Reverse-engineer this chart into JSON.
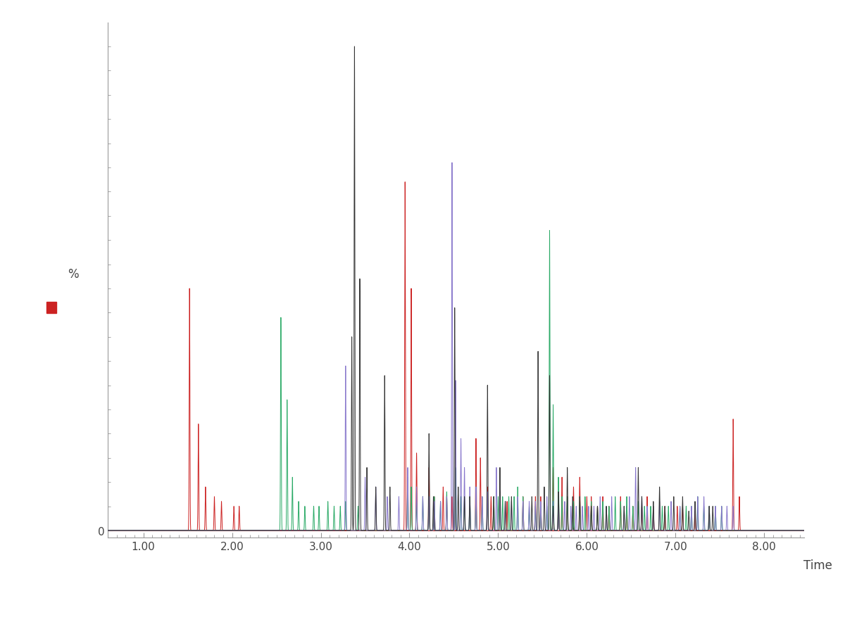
{
  "title": "",
  "xlabel": "Time",
  "ylabel": "%",
  "xlim": [
    0.6,
    8.45
  ],
  "ylim": [
    -0.015,
    1.05
  ],
  "background_color": "#ffffff",
  "axis_color": "#999999",
  "tick_color": "#999999",
  "label_color": "#444444",
  "legend_color": "#cc2222",
  "colors": {
    "black": "#333333",
    "red": "#cc2222",
    "green": "#2aaa66",
    "purple": "#8877cc"
  },
  "sigma": 0.004,
  "peaks_black": [
    [
      3.38,
      1.0
    ],
    [
      3.35,
      0.4
    ],
    [
      3.44,
      0.52
    ],
    [
      3.72,
      0.32
    ],
    [
      4.51,
      0.46
    ],
    [
      4.88,
      0.3
    ],
    [
      5.02,
      0.13
    ],
    [
      5.45,
      0.37
    ],
    [
      5.58,
      0.32
    ],
    [
      5.78,
      0.13
    ],
    [
      6.58,
      0.13
    ],
    [
      6.82,
      0.09
    ],
    [
      6.98,
      0.07
    ],
    [
      7.08,
      0.07
    ],
    [
      7.22,
      0.06
    ],
    [
      7.38,
      0.05
    ],
    [
      3.52,
      0.13
    ],
    [
      3.62,
      0.09
    ],
    [
      3.78,
      0.09
    ],
    [
      4.22,
      0.2
    ],
    [
      4.27,
      0.07
    ],
    [
      4.55,
      0.09
    ],
    [
      4.62,
      0.07
    ],
    [
      4.68,
      0.07
    ],
    [
      4.95,
      0.07
    ],
    [
      5.08,
      0.06
    ],
    [
      5.15,
      0.07
    ],
    [
      5.38,
      0.07
    ],
    [
      5.52,
      0.09
    ],
    [
      5.62,
      0.05
    ],
    [
      5.68,
      0.08
    ],
    [
      5.84,
      0.07
    ],
    [
      5.92,
      0.07
    ],
    [
      6.05,
      0.05
    ],
    [
      6.12,
      0.05
    ],
    [
      6.22,
      0.05
    ],
    [
      6.42,
      0.05
    ],
    [
      6.62,
      0.07
    ],
    [
      6.75,
      0.06
    ],
    [
      6.88,
      0.05
    ],
    [
      7.15,
      0.04
    ],
    [
      7.42,
      0.05
    ]
  ],
  "peaks_red": [
    [
      1.52,
      0.5
    ],
    [
      1.62,
      0.22
    ],
    [
      1.7,
      0.09
    ],
    [
      1.8,
      0.07
    ],
    [
      3.95,
      0.72
    ],
    [
      4.02,
      0.5
    ],
    [
      4.08,
      0.16
    ],
    [
      4.75,
      0.19
    ],
    [
      4.8,
      0.15
    ],
    [
      5.62,
      0.13
    ],
    [
      5.72,
      0.11
    ],
    [
      5.85,
      0.09
    ],
    [
      5.92,
      0.11
    ],
    [
      6.18,
      0.07
    ],
    [
      6.38,
      0.07
    ],
    [
      7.65,
      0.23
    ],
    [
      7.72,
      0.07
    ],
    [
      1.88,
      0.06
    ],
    [
      2.02,
      0.05
    ],
    [
      2.08,
      0.05
    ],
    [
      4.22,
      0.13
    ],
    [
      4.28,
      0.07
    ],
    [
      4.38,
      0.09
    ],
    [
      4.42,
      0.07
    ],
    [
      4.48,
      0.07
    ],
    [
      4.88,
      0.09
    ],
    [
      4.92,
      0.07
    ],
    [
      5.1,
      0.06
    ],
    [
      5.28,
      0.07
    ],
    [
      5.42,
      0.07
    ],
    [
      5.48,
      0.07
    ],
    [
      5.68,
      0.07
    ],
    [
      5.78,
      0.07
    ],
    [
      6.0,
      0.07
    ],
    [
      6.05,
      0.07
    ],
    [
      6.12,
      0.05
    ],
    [
      6.25,
      0.05
    ],
    [
      6.45,
      0.05
    ],
    [
      6.52,
      0.05
    ],
    [
      6.62,
      0.05
    ],
    [
      6.68,
      0.07
    ],
    [
      6.75,
      0.05
    ],
    [
      6.88,
      0.05
    ],
    [
      7.02,
      0.05
    ],
    [
      7.08,
      0.05
    ],
    [
      7.22,
      0.04
    ]
  ],
  "peaks_green": [
    [
      2.55,
      0.44
    ],
    [
      2.62,
      0.27
    ],
    [
      2.68,
      0.11
    ],
    [
      2.75,
      0.06
    ],
    [
      5.58,
      0.62
    ],
    [
      5.62,
      0.26
    ],
    [
      5.68,
      0.11
    ],
    [
      5.22,
      0.09
    ],
    [
      5.28,
      0.07
    ],
    [
      4.52,
      0.13
    ],
    [
      4.58,
      0.07
    ],
    [
      3.98,
      0.11
    ],
    [
      4.02,
      0.09
    ],
    [
      2.82,
      0.05
    ],
    [
      2.92,
      0.05
    ],
    [
      2.98,
      0.05
    ],
    [
      3.08,
      0.06
    ],
    [
      3.15,
      0.05
    ],
    [
      3.22,
      0.05
    ],
    [
      3.28,
      0.06
    ],
    [
      3.42,
      0.05
    ],
    [
      4.08,
      0.06
    ],
    [
      4.15,
      0.07
    ],
    [
      4.22,
      0.07
    ],
    [
      4.28,
      0.07
    ],
    [
      4.35,
      0.06
    ],
    [
      4.42,
      0.08
    ],
    [
      4.62,
      0.07
    ],
    [
      4.68,
      0.07
    ],
    [
      4.75,
      0.09
    ],
    [
      4.82,
      0.07
    ],
    [
      4.88,
      0.07
    ],
    [
      4.95,
      0.07
    ],
    [
      5.0,
      0.07
    ],
    [
      5.05,
      0.07
    ],
    [
      5.12,
      0.07
    ],
    [
      5.18,
      0.07
    ],
    [
      5.35,
      0.05
    ],
    [
      5.42,
      0.05
    ],
    [
      5.48,
      0.05
    ],
    [
      5.55,
      0.05
    ],
    [
      5.72,
      0.07
    ],
    [
      5.78,
      0.07
    ],
    [
      5.85,
      0.06
    ],
    [
      5.92,
      0.07
    ],
    [
      5.98,
      0.07
    ],
    [
      6.05,
      0.06
    ],
    [
      6.12,
      0.05
    ],
    [
      6.18,
      0.06
    ],
    [
      6.25,
      0.05
    ],
    [
      6.32,
      0.07
    ],
    [
      6.38,
      0.06
    ],
    [
      6.45,
      0.07
    ],
    [
      6.52,
      0.05
    ],
    [
      6.58,
      0.06
    ],
    [
      6.65,
      0.05
    ],
    [
      6.72,
      0.05
    ],
    [
      6.85,
      0.05
    ],
    [
      6.92,
      0.05
    ],
    [
      7.05,
      0.05
    ],
    [
      7.12,
      0.05
    ],
    [
      7.18,
      0.05
    ],
    [
      7.25,
      0.07
    ],
    [
      7.32,
      0.05
    ],
    [
      7.38,
      0.05
    ],
    [
      7.45,
      0.05
    ],
    [
      7.52,
      0.05
    ]
  ],
  "peaks_purple": [
    [
      3.28,
      0.34
    ],
    [
      4.48,
      0.76
    ],
    [
      4.52,
      0.31
    ],
    [
      4.58,
      0.19
    ],
    [
      4.62,
      0.13
    ],
    [
      4.68,
      0.09
    ],
    [
      4.88,
      0.08
    ],
    [
      4.98,
      0.13
    ],
    [
      5.02,
      0.08
    ],
    [
      5.22,
      0.07
    ],
    [
      5.62,
      0.06
    ],
    [
      6.15,
      0.07
    ],
    [
      6.28,
      0.07
    ],
    [
      6.55,
      0.13
    ],
    [
      6.62,
      0.07
    ],
    [
      7.25,
      0.07
    ],
    [
      7.32,
      0.07
    ],
    [
      3.5,
      0.11
    ],
    [
      3.62,
      0.09
    ],
    [
      3.75,
      0.07
    ],
    [
      3.88,
      0.07
    ],
    [
      3.98,
      0.13
    ],
    [
      4.08,
      0.09
    ],
    [
      4.15,
      0.07
    ],
    [
      4.22,
      0.07
    ],
    [
      4.28,
      0.06
    ],
    [
      4.35,
      0.06
    ],
    [
      4.42,
      0.07
    ],
    [
      4.75,
      0.09
    ],
    [
      4.82,
      0.07
    ],
    [
      5.08,
      0.06
    ],
    [
      5.15,
      0.06
    ],
    [
      5.28,
      0.06
    ],
    [
      5.35,
      0.06
    ],
    [
      5.42,
      0.06
    ],
    [
      5.48,
      0.06
    ],
    [
      5.55,
      0.07
    ],
    [
      5.68,
      0.05
    ],
    [
      5.75,
      0.06
    ],
    [
      5.82,
      0.05
    ],
    [
      5.88,
      0.05
    ],
    [
      5.95,
      0.05
    ],
    [
      6.02,
      0.05
    ],
    [
      6.08,
      0.05
    ],
    [
      6.22,
      0.05
    ],
    [
      6.42,
      0.05
    ],
    [
      6.48,
      0.07
    ],
    [
      6.68,
      0.05
    ],
    [
      6.75,
      0.05
    ],
    [
      6.82,
      0.06
    ],
    [
      6.95,
      0.06
    ],
    [
      7.05,
      0.05
    ],
    [
      7.18,
      0.05
    ],
    [
      7.38,
      0.05
    ],
    [
      7.45,
      0.05
    ],
    [
      7.52,
      0.05
    ],
    [
      7.58,
      0.05
    ],
    [
      7.65,
      0.05
    ]
  ]
}
